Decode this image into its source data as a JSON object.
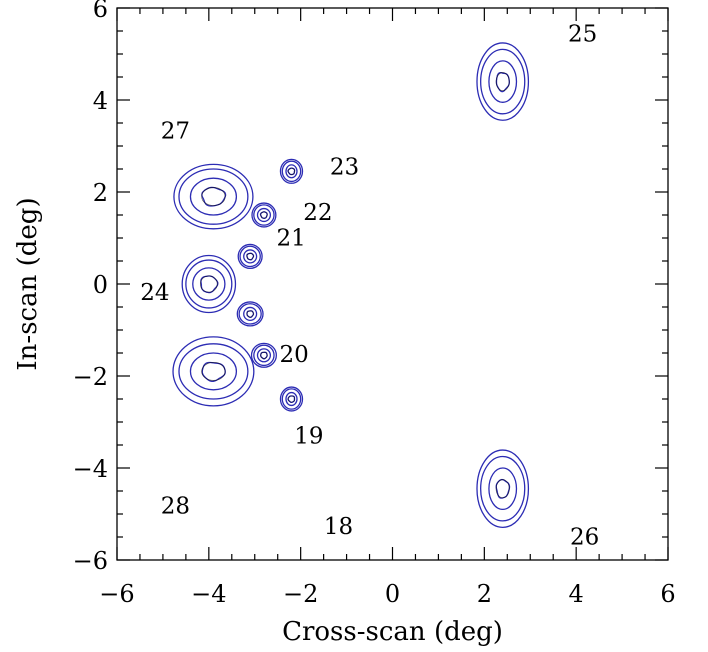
{
  "chart_data": {
    "type": "contour",
    "xlabel": "Cross-scan (deg)",
    "ylabel": "In-scan (deg)",
    "xlim": [
      -6,
      6
    ],
    "ylim": [
      -6,
      6
    ],
    "x_major_ticks": [
      -6,
      -4,
      -2,
      0,
      2,
      4,
      6
    ],
    "y_major_ticks": [
      -6,
      -4,
      -2,
      0,
      2,
      4,
      6
    ],
    "x_tick_labels": [
      "−6",
      "−4",
      "−2",
      "0",
      "2",
      "4",
      "6"
    ],
    "y_tick_labels": [
      "−6",
      "−4",
      "−2",
      "0",
      "2",
      "4",
      "6"
    ],
    "minor_tick_step": 0.5,
    "grid": false,
    "contour_color": "#2c2cb4",
    "beams": [
      {
        "label": "18",
        "x": -2.2,
        "y": -2.5,
        "levels_major": [
          0.07,
          0.14,
          0.22,
          0.26
        ],
        "levels_minor": [
          0.07,
          0.12,
          0.2,
          0.24
        ]
      },
      {
        "label": "19",
        "x": -2.8,
        "y": -1.55,
        "levels_major": [
          0.07,
          0.14,
          0.22,
          0.26
        ],
        "levels_minor": [
          0.07,
          0.14,
          0.22,
          0.27
        ]
      },
      {
        "label": "20",
        "x": -3.1,
        "y": -0.65,
        "levels_major": [
          0.07,
          0.14,
          0.22,
          0.26
        ],
        "levels_minor": [
          0.07,
          0.14,
          0.24,
          0.28
        ]
      },
      {
        "label": "21",
        "x": -3.1,
        "y": 0.6,
        "levels_major": [
          0.07,
          0.14,
          0.22,
          0.26
        ],
        "levels_minor": [
          0.07,
          0.14,
          0.22,
          0.26
        ]
      },
      {
        "label": "22",
        "x": -2.8,
        "y": 1.5,
        "levels_major": [
          0.07,
          0.14,
          0.22,
          0.26
        ],
        "levels_minor": [
          0.07,
          0.14,
          0.22,
          0.26
        ]
      },
      {
        "label": "23",
        "x": -2.2,
        "y": 2.45,
        "levels_major": [
          0.07,
          0.14,
          0.22,
          0.26
        ],
        "levels_minor": [
          0.07,
          0.12,
          0.2,
          0.24
        ]
      },
      {
        "label": "24",
        "x": -4.0,
        "y": 0.0,
        "levels_major": [
          0.18,
          0.35,
          0.52,
          0.62
        ],
        "levels_minor": [
          0.18,
          0.35,
          0.5,
          0.58
        ]
      },
      {
        "label": "25",
        "x": 2.4,
        "y": 4.4,
        "levels_major": [
          0.2,
          0.45,
          0.7,
          0.84
        ],
        "levels_minor": [
          0.14,
          0.3,
          0.48,
          0.56
        ]
      },
      {
        "label": "26",
        "x": 2.4,
        "y": -4.45,
        "levels_major": [
          0.2,
          0.45,
          0.7,
          0.84
        ],
        "levels_minor": [
          0.14,
          0.3,
          0.48,
          0.56
        ]
      },
      {
        "label": "27",
        "x": -3.9,
        "y": 1.9,
        "levels_major": [
          0.2,
          0.4,
          0.6,
          0.7
        ],
        "levels_minor": [
          0.25,
          0.5,
          0.75,
          0.86
        ]
      },
      {
        "label": "28",
        "x": -3.9,
        "y": -1.9,
        "levels_major": [
          0.2,
          0.4,
          0.6,
          0.75
        ],
        "levels_minor": [
          0.25,
          0.5,
          0.75,
          0.88
        ]
      }
    ]
  }
}
